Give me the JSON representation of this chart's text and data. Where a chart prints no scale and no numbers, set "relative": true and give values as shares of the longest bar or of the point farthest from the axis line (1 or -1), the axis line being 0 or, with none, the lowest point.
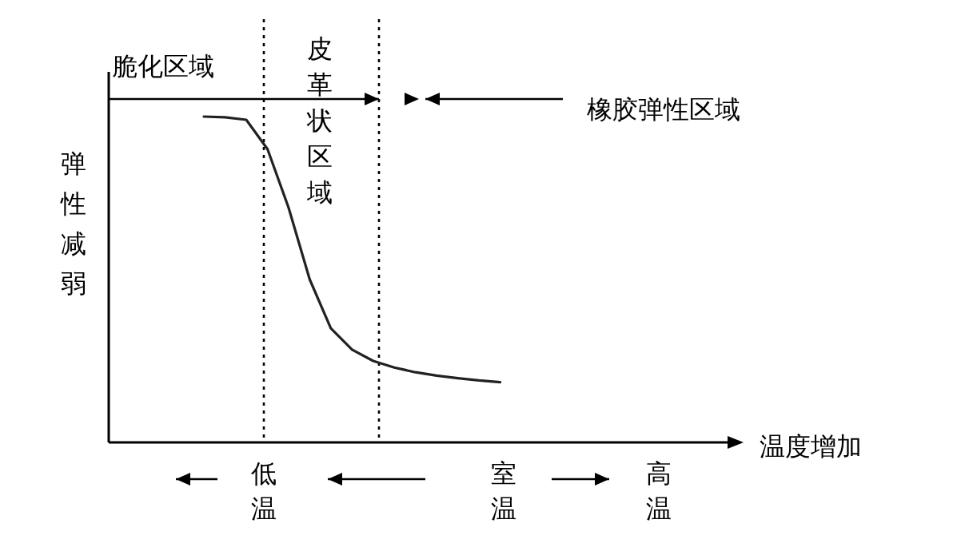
{
  "chart_data": {
    "type": "line",
    "relative": true,
    "xlabel": "温度增加",
    "ylabel": "弹性减弱",
    "color": "#222222",
    "line_style": "solid",
    "categories": [
      null,
      null,
      null,
      null,
      null,
      null,
      null,
      null,
      null,
      null,
      null,
      null,
      null,
      null,
      null,
      null,
      null,
      null,
      null,
      null,
      null,
      null,
      null,
      null,
      null,
      null,
      null,
      null,
      null,
      null
    ],
    "values": [
      null,
      null,
      null,
      null,
      1.0,
      0.998,
      0.99,
      0.9,
      0.72,
      0.5,
      0.35,
      0.285,
      0.25,
      0.23,
      0.215,
      0.205,
      0.197,
      0.19,
      0.185,
      null,
      null,
      null,
      null,
      null,
      null,
      null,
      null,
      null,
      null,
      null
    ],
    "ref_lines": [
      {
        "axis": "x",
        "line_style": "dotted"
      },
      {
        "axis": "x",
        "line_style": "dotted"
      }
    ],
    "annotations": [
      "脆化区域",
      "皮革状区域",
      "橡胶弹性区域",
      "低温",
      "室温",
      "高温"
    ]
  }
}
